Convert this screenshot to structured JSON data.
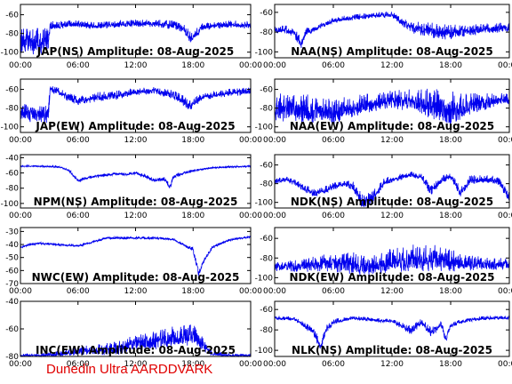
{
  "footer_text": "Dunedin Ultra AARDDVARK",
  "colors": {
    "trace": "#0000ee",
    "axis": "#000000",
    "footer": "#e00000"
  },
  "chart_data": [
    {
      "type": "line",
      "title": "JAP(NS) Amplitude: 08-Aug-2025",
      "station": "JAP(NS)",
      "x_ticks": [
        "00:00",
        "06:00",
        "12:00",
        "18:00",
        "00:00"
      ],
      "xlim_hours": [
        0,
        24
      ],
      "y_ticks": [
        -100,
        -80,
        -60
      ],
      "ylim": [
        -106,
        -49
      ],
      "series": [
        {
          "x": [
            0,
            1,
            2,
            2.9,
            3.1,
            5,
            6,
            8,
            10,
            12,
            14,
            16,
            17,
            17.8,
            18.3,
            19,
            20,
            22,
            24
          ],
          "y": [
            -88,
            -89,
            -88,
            -88,
            -72,
            -70,
            -70,
            -72,
            -70,
            -69,
            -69,
            -71,
            -75,
            -85,
            -80,
            -73,
            -72,
            -70,
            -71
          ],
          "noise": [
            14,
            14,
            14,
            14,
            5,
            4,
            4,
            4,
            4,
            4,
            4,
            5,
            6,
            6,
            5,
            4,
            4,
            4,
            4
          ]
        }
      ]
    },
    {
      "type": "line",
      "title": "NAA(NS) Amplitude: 08-Aug-2025",
      "station": "NAA(NS)",
      "x_ticks": [
        "00:00",
        "06:00",
        "12:00",
        "18:00",
        "00:00"
      ],
      "xlim_hours": [
        0,
        24
      ],
      "y_ticks": [
        -100,
        -80,
        -60
      ],
      "ylim": [
        -106,
        -52
      ],
      "series": [
        {
          "x": [
            0,
            1,
            2,
            2.7,
            3.2,
            5,
            6,
            8,
            10,
            12,
            13,
            14,
            16,
            18,
            20,
            22,
            24
          ],
          "y": [
            -78,
            -77,
            -80,
            -92,
            -80,
            -72,
            -68,
            -65,
            -63,
            -62,
            -70,
            -75,
            -78,
            -80,
            -78,
            -76,
            -75
          ],
          "noise": [
            4,
            4,
            5,
            6,
            4,
            3,
            3,
            3,
            3,
            3,
            4,
            6,
            8,
            8,
            6,
            5,
            5
          ]
        }
      ]
    },
    {
      "type": "line",
      "title": "JAP(EW) Amplitude: 08-Aug-2025",
      "station": "JAP(EW)",
      "x_ticks": [
        "00:00",
        "06:00",
        "12:00",
        "18:00",
        "00:00"
      ],
      "xlim_hours": [
        0,
        24
      ],
      "y_ticks": [
        -100,
        -80,
        -60
      ],
      "ylim": [
        -106,
        -49
      ],
      "series": [
        {
          "x": [
            0,
            1,
            2,
            2.9,
            3.1,
            4,
            5,
            6,
            8,
            10,
            12,
            14,
            16,
            17,
            17.8,
            18.3,
            19,
            20,
            22,
            24
          ],
          "y": [
            -84,
            -85,
            -86,
            -86,
            -60,
            -62,
            -68,
            -72,
            -68,
            -66,
            -62,
            -61,
            -66,
            -72,
            -78,
            -72,
            -68,
            -66,
            -63,
            -62
          ],
          "noise": [
            10,
            10,
            10,
            10,
            4,
            4,
            5,
            5,
            5,
            5,
            4,
            4,
            5,
            6,
            6,
            5,
            4,
            4,
            4,
            4
          ]
        }
      ]
    },
    {
      "type": "line",
      "title": "NAA(EW) Amplitude: 08-Aug-2025",
      "station": "NAA(EW)",
      "x_ticks": [
        "00:00",
        "06:00",
        "12:00",
        "18:00",
        "00:00"
      ],
      "xlim_hours": [
        0,
        24
      ],
      "y_ticks": [
        -100,
        -80,
        -60
      ],
      "ylim": [
        -106,
        -49
      ],
      "series": [
        {
          "x": [
            0,
            2,
            4,
            6,
            8,
            10,
            12,
            14,
            16,
            18,
            20,
            22,
            24
          ],
          "y": [
            -80,
            -80,
            -82,
            -83,
            -78,
            -74,
            -70,
            -72,
            -75,
            -80,
            -76,
            -72,
            -70
          ],
          "noise": [
            16,
            16,
            16,
            14,
            12,
            10,
            10,
            12,
            16,
            18,
            12,
            8,
            6
          ]
        }
      ]
    },
    {
      "type": "line",
      "title": "NPM(NS) Amplitude: 08-Aug-2025",
      "station": "NPM(NS)",
      "x_ticks": [
        "00:00",
        "06:00",
        "12:00",
        "18:00",
        "00:00"
      ],
      "xlim_hours": [
        0,
        24
      ],
      "y_ticks": [
        -100,
        -80,
        -60,
        -40
      ],
      "ylim": [
        -106,
        -36
      ],
      "series": [
        {
          "x": [
            0,
            2,
            4,
            5,
            6,
            7,
            8,
            10,
            11,
            12,
            13,
            14,
            15,
            15.6,
            16,
            17,
            18,
            19,
            20,
            22,
            24
          ],
          "y": [
            -51,
            -51,
            -52,
            -56,
            -70,
            -66,
            -64,
            -61,
            -62,
            -60,
            -64,
            -70,
            -68,
            -78,
            -64,
            -60,
            -57,
            -55,
            -53,
            -52,
            -51
          ],
          "noise": [
            1,
            1,
            1,
            2,
            2,
            2,
            2,
            2,
            2,
            2,
            3,
            3,
            3,
            4,
            3,
            2,
            2,
            1,
            1,
            1,
            1
          ]
        }
      ]
    },
    {
      "type": "line",
      "title": "NDK(NS) Amplitude: 08-Aug-2025",
      "station": "NDK(NS)",
      "x_ticks": [
        "00:00",
        "06:00",
        "12:00",
        "18:00",
        "00:00"
      ],
      "xlim_hours": [
        0,
        24
      ],
      "y_ticks": [
        -100,
        -80,
        -60
      ],
      "ylim": [
        -106,
        -49
      ],
      "series": [
        {
          "x": [
            0,
            1,
            2,
            3,
            4,
            5,
            6,
            7,
            8,
            9,
            10,
            11,
            12,
            14,
            15,
            16,
            17,
            18,
            19,
            20,
            22,
            23,
            24
          ],
          "y": [
            -78,
            -75,
            -78,
            -85,
            -90,
            -87,
            -83,
            -80,
            -82,
            -100,
            -96,
            -80,
            -75,
            -70,
            -72,
            -88,
            -76,
            -72,
            -88,
            -76,
            -75,
            -78,
            -95
          ],
          "noise": [
            3,
            3,
            4,
            4,
            5,
            4,
            4,
            3,
            5,
            8,
            8,
            5,
            4,
            3,
            4,
            6,
            5,
            4,
            6,
            5,
            4,
            5,
            6
          ]
        }
      ]
    },
    {
      "type": "line",
      "title": "NWC(EW) Amplitude: 08-Aug-2025",
      "station": "NWC(EW)",
      "x_ticks": [
        "00:00",
        "06:00",
        "12:00",
        "18:00",
        "00:00"
      ],
      "xlim_hours": [
        0,
        24
      ],
      "y_ticks": [
        -70,
        -60,
        -50,
        -40,
        -30
      ],
      "ylim": [
        -70,
        -27
      ],
      "series": [
        {
          "x": [
            0,
            1,
            2,
            4,
            6,
            8,
            9,
            10,
            12,
            14,
            16,
            17,
            18,
            18.6,
            19,
            20,
            22,
            24
          ],
          "y": [
            -42,
            -40,
            -39,
            -40,
            -41,
            -37,
            -35,
            -35,
            -35,
            -35,
            -36,
            -40,
            -44,
            -62,
            -54,
            -42,
            -36,
            -34
          ],
          "noise": [
            1,
            1,
            1,
            1,
            1,
            1,
            1,
            1,
            1,
            1,
            1,
            1,
            2,
            3,
            2,
            1,
            1,
            1
          ]
        }
      ]
    },
    {
      "type": "line",
      "title": "NDK(EW) Amplitude: 08-Aug-2025",
      "station": "NDK(EW)",
      "x_ticks": [
        "00:00",
        "06:00",
        "12:00",
        "18:00",
        "00:00"
      ],
      "xlim_hours": [
        0,
        24
      ],
      "y_ticks": [
        -100,
        -80,
        -60
      ],
      "ylim": [
        -106,
        -49
      ],
      "series": [
        {
          "x": [
            0,
            2,
            4,
            6,
            8,
            10,
            12,
            14,
            16,
            18,
            20,
            22,
            24
          ],
          "y": [
            -88,
            -88,
            -86,
            -84,
            -86,
            -88,
            -82,
            -80,
            -80,
            -82,
            -85,
            -86,
            -86
          ],
          "noise": [
            6,
            6,
            8,
            10,
            12,
            10,
            12,
            14,
            14,
            12,
            8,
            6,
            6
          ]
        }
      ]
    },
    {
      "type": "line",
      "title": "INC(EW) Amplitude: 08-Aug-2025",
      "station": "INC(EW)",
      "x_ticks": [
        "00:00",
        "06:00",
        "12:00",
        "18:00",
        "00:00"
      ],
      "xlim_hours": [
        0,
        24
      ],
      "y_ticks": [
        -80,
        -60,
        -40
      ],
      "ylim": [
        -80,
        -40
      ],
      "series": [
        {
          "x": [
            0,
            2,
            4,
            6,
            8,
            10,
            12,
            14,
            16,
            18,
            19,
            20,
            22,
            24
          ],
          "y": [
            -79,
            -79,
            -78,
            -76,
            -75,
            -74,
            -70,
            -68,
            -66,
            -64,
            -70,
            -78,
            -79,
            -79
          ],
          "noise": [
            1,
            1,
            2,
            3,
            4,
            5,
            6,
            7,
            8,
            8,
            6,
            2,
            1,
            1
          ]
        }
      ]
    },
    {
      "type": "line",
      "title": "NLK(NS) Amplitude: 08-Aug-2025",
      "station": "NLK(NS)",
      "x_ticks": [
        "00:00",
        "06:00",
        "12:00",
        "18:00",
        "00:00"
      ],
      "xlim_hours": [
        0,
        24
      ],
      "y_ticks": [
        -100,
        -80,
        -60
      ],
      "ylim": [
        -106,
        -52
      ],
      "series": [
        {
          "x": [
            0,
            2,
            3,
            4,
            4.7,
            5.2,
            6,
            8,
            10,
            12,
            13,
            14,
            15,
            16,
            17,
            17.5,
            18,
            19,
            20,
            22,
            24
          ],
          "y": [
            -68,
            -69,
            -75,
            -82,
            -96,
            -80,
            -72,
            -68,
            -70,
            -71,
            -76,
            -80,
            -72,
            -82,
            -74,
            -88,
            -75,
            -72,
            -70,
            -68,
            -68
          ],
          "noise": [
            2,
            2,
            3,
            4,
            5,
            4,
            3,
            2,
            2,
            2,
            3,
            5,
            3,
            5,
            3,
            5,
            3,
            2,
            2,
            2,
            2
          ]
        }
      ]
    }
  ]
}
